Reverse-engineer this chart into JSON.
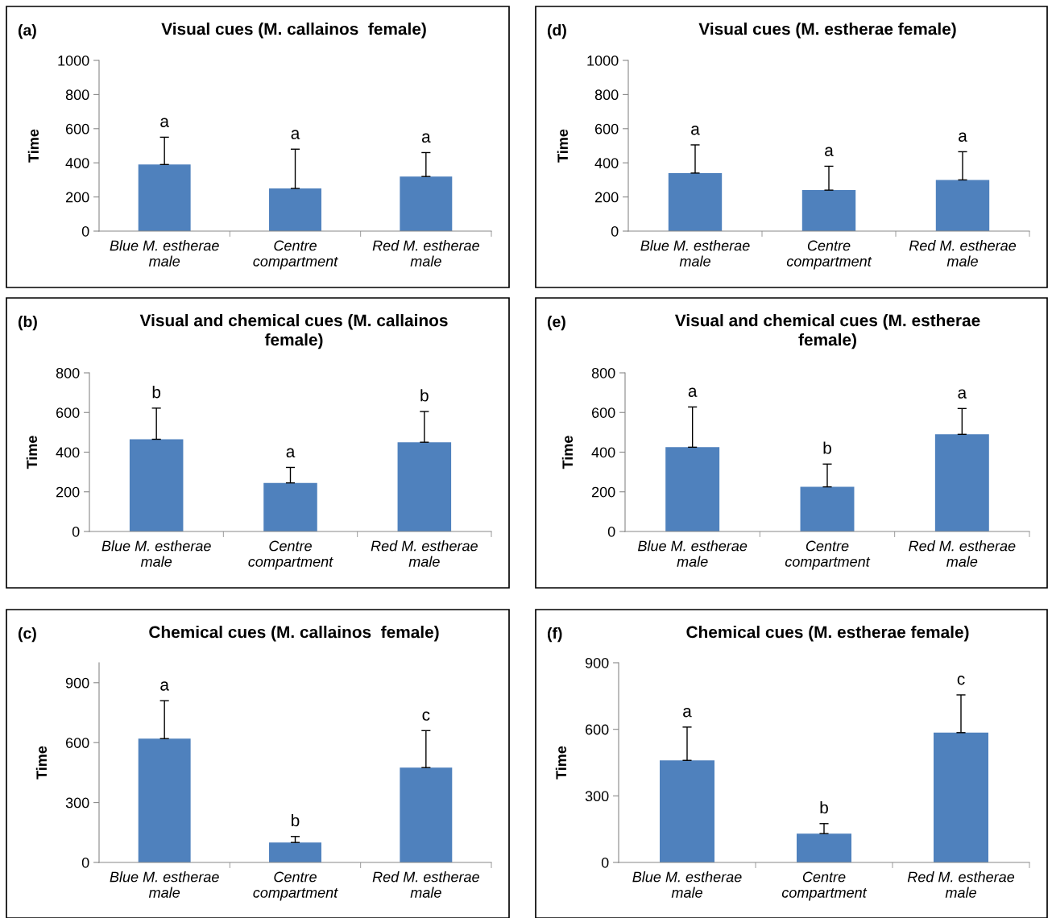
{
  "chart_data": [
    {
      "type": "bar",
      "title": "Visual cues (M. callainos  female)",
      "ylabel": "Time",
      "categories": [
        "Blue M. estherae\nmale",
        "Centre\ncompartment",
        "Red M. estherae\nmale"
      ],
      "values": [
        390,
        250,
        320
      ],
      "errors": [
        [
          390,
          550
        ],
        [
          250,
          480
        ],
        [
          320,
          460
        ]
      ],
      "color": "#4f81bd",
      "ylim": [
        0,
        1000
      ],
      "yticks": [
        0,
        200,
        400,
        600,
        800,
        1000
      ],
      "annotations": [
        "(a)",
        "a",
        "a",
        "a"
      ]
    },
    {
      "type": "bar",
      "title": "Visual cues (M. estherae female)",
      "ylabel": "Time",
      "categories": [
        "Blue M. estherae\nmale",
        "Centre\ncompartment",
        "Red M. estherae\nmale"
      ],
      "values": [
        340,
        240,
        300
      ],
      "errors": [
        [
          340,
          505
        ],
        [
          240,
          380
        ],
        [
          300,
          465
        ]
      ],
      "color": "#4f81bd",
      "ylim": [
        0,
        1000
      ],
      "yticks": [
        0,
        200,
        400,
        600,
        800,
        1000
      ],
      "annotations": [
        "(d)",
        "a",
        "a",
        "a"
      ]
    },
    {
      "type": "bar",
      "title": "Visual and chemical cues (M. callainos\nfemale)",
      "ylabel": "Time",
      "categories": [
        "Blue M. estherae\nmale",
        "Centre\ncompartment",
        "Red M. estherae\nmale"
      ],
      "values": [
        465,
        245,
        450
      ],
      "errors": [
        [
          465,
          622
        ],
        [
          245,
          323
        ],
        [
          450,
          605
        ]
      ],
      "color": "#4f81bd",
      "ylim": [
        0,
        800
      ],
      "yticks": [
        0,
        200,
        400,
        600,
        800
      ],
      "annotations": [
        "(b)",
        "b",
        "a",
        "b"
      ]
    },
    {
      "type": "bar",
      "title": "Visual and chemical cues (M. estherae\nfemale)",
      "ylabel": "Time",
      "categories": [
        "Blue M. estherae\nmale",
        "Centre\ncompartment",
        "Red M. estherae\nmale"
      ],
      "values": [
        425,
        225,
        490
      ],
      "errors": [
        [
          425,
          628
        ],
        [
          225,
          340
        ],
        [
          490,
          620
        ]
      ],
      "color": "#4f81bd",
      "ylim": [
        0,
        800
      ],
      "yticks": [
        0,
        200,
        400,
        600,
        800
      ],
      "annotations": [
        "(e)",
        "a",
        "b",
        "a"
      ]
    },
    {
      "type": "bar",
      "title": "Chemical cues (M. callainos  female)",
      "ylabel": "Time",
      "categories": [
        "Blue M. estherae\nmale",
        "Centre\ncompartment",
        "Red M. estherae\nmale"
      ],
      "values": [
        620,
        100,
        475
      ],
      "errors": [
        [
          620,
          810
        ],
        [
          100,
          130
        ],
        [
          475,
          660
        ]
      ],
      "color": "#4f81bd",
      "ylim": [
        0,
        1000
      ],
      "yticks": [
        0,
        300,
        600,
        900
      ],
      "annotations": [
        "(c)",
        "a",
        "b",
        "c"
      ]
    },
    {
      "type": "bar",
      "title": "Chemical cues (M. estherae female)",
      "ylabel": "Time",
      "categories": [
        "Blue M. estherae\nmale",
        "Centre\ncompartment",
        "Red M. estherae\nmale"
      ],
      "values": [
        460,
        130,
        585
      ],
      "errors": [
        [
          460,
          610
        ],
        [
          130,
          175
        ],
        [
          585,
          755
        ]
      ],
      "color": "#4f81bd",
      "ylim": [
        0,
        900
      ],
      "yticks": [
        0,
        300,
        600,
        900
      ],
      "annotations": [
        "(f)",
        "a",
        "b",
        "c"
      ]
    }
  ]
}
